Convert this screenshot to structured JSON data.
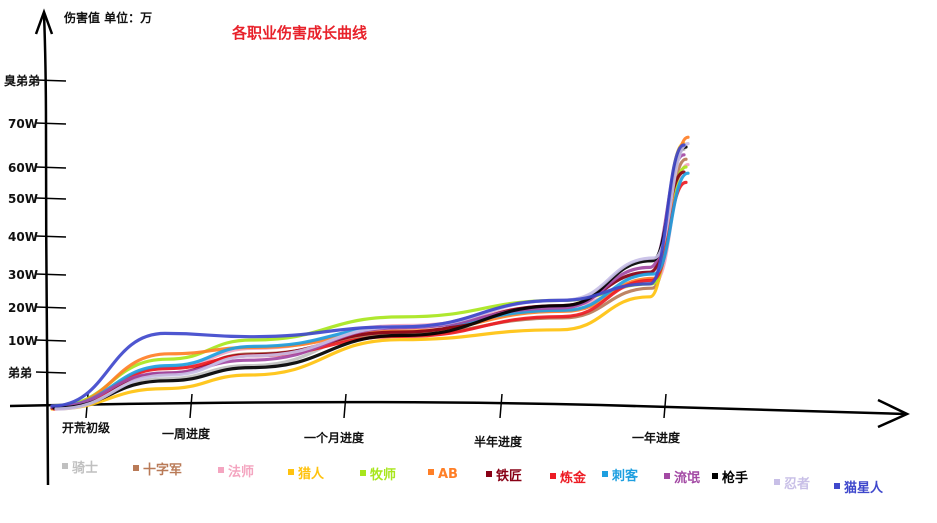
{
  "chart_data": {
    "type": "line",
    "title": "各职业伤害成长曲线",
    "ylabel": "伤害值 单位：万",
    "xlabel": "",
    "y_ticks": [
      "弟弟",
      "10W",
      "20W",
      "30W",
      "40W",
      "50W",
      "60W",
      "70W",
      "臭弟弟"
    ],
    "x_ticks": [
      "开荒初级",
      "一周进度",
      "一个月进度",
      "半年进度",
      "一年进度"
    ],
    "grid": false,
    "legend_position": "bottom",
    "series": [
      {
        "name": "骑士",
        "color": "#c0c0c0",
        "values": [
          0,
          4,
          6,
          14,
          22,
          30,
          64
        ]
      },
      {
        "name": "十字军",
        "color": "#b97a57",
        "values": [
          0,
          5,
          8,
          12,
          17,
          26,
          62
        ]
      },
      {
        "name": "法师",
        "color": "#f4a5c0",
        "values": [
          0,
          6,
          9,
          15,
          21,
          28,
          61
        ]
      },
      {
        "name": "猎人",
        "color": "#ffc20e",
        "values": [
          0,
          3,
          5,
          11,
          14,
          24,
          66
        ]
      },
      {
        "name": "牧师",
        "color": "#a8e61d",
        "values": [
          0,
          7,
          10,
          17,
          22,
          27,
          60
        ]
      },
      {
        "name": "AB",
        "color": "#ff7f27",
        "values": [
          0,
          8,
          9,
          13,
          19,
          29,
          67
        ]
      },
      {
        "name": "铁匠",
        "color": "#880015",
        "values": [
          0,
          5,
          8,
          13,
          21,
          31,
          59
        ]
      },
      {
        "name": "炼金",
        "color": "#ed1c24",
        "values": [
          0,
          6,
          8,
          12,
          18,
          29,
          56
        ]
      },
      {
        "name": "刺客",
        "color": "#1e9fe0",
        "values": [
          0,
          6,
          9,
          14,
          19,
          30,
          58
        ]
      },
      {
        "name": "流氓",
        "color": "#a349a4",
        "values": [
          0,
          5,
          7,
          14,
          20,
          32,
          63
        ]
      },
      {
        "name": "枪手",
        "color": "#000000",
        "values": [
          0,
          4,
          6,
          12,
          21,
          34,
          65
        ]
      },
      {
        "name": "忍者",
        "color": "#c8bfe7",
        "values": [
          0,
          5,
          8,
          15,
          23,
          35,
          66
        ]
      },
      {
        "name": "猫星人",
        "color": "#3f48cc",
        "values": [
          0,
          12,
          11,
          14,
          22,
          27,
          65
        ]
      }
    ]
  }
}
